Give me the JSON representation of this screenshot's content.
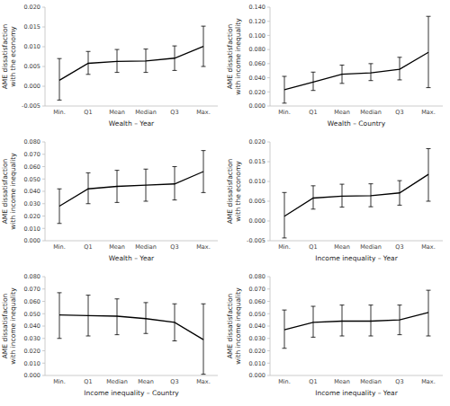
{
  "chart_data": [
    {
      "type": "line",
      "color": "#000000",
      "ylabel": "AME dissatisfaction with the economy",
      "xlabel": "Wealth – Year",
      "categories": [
        "Min.",
        "Q1",
        "Mean",
        "Median",
        "Q3",
        "Max."
      ],
      "values": [
        0.0015,
        0.0058,
        0.0063,
        0.0064,
        0.0071,
        0.0101
      ],
      "lower": [
        -0.0035,
        0.003,
        0.0035,
        0.0035,
        0.004,
        0.005
      ],
      "upper": [
        0.007,
        0.0088,
        0.0093,
        0.0094,
        0.0102,
        0.0152
      ],
      "ylim": [
        -0.005,
        0.02
      ],
      "yticks": [
        -0.005,
        {
          "value": 0,
          "label": "0.000"
        },
        0.005,
        {
          "value": 0.01,
          "label": "0.010"
        },
        0.015,
        {
          "value": 0.02,
          "label": "0.020"
        }
      ]
    },
    {
      "type": "line",
      "color": "#000000",
      "ylabel": "AME dissatisfaction with income inequality",
      "xlabel": "Wealth – Country",
      "categories": [
        "Min.",
        "Q1",
        "Mean",
        "Median",
        "Q3",
        "Max."
      ],
      "values": [
        0.023,
        0.034,
        0.045,
        0.047,
        0.052,
        0.076
      ],
      "lower": [
        0.004,
        0.022,
        0.032,
        0.036,
        0.037,
        0.026
      ],
      "upper": [
        0.042,
        0.048,
        0.058,
        0.06,
        0.069,
        0.127
      ],
      "ylim": [
        0,
        0.14
      ],
      "yticks": [
        {
          "value": 0,
          "label": "0.000"
        },
        {
          "value": 0.02,
          "label": "0.020"
        },
        {
          "value": 0.04,
          "label": "0.040"
        },
        {
          "value": 0.06,
          "label": "0.060"
        },
        {
          "value": 0.08,
          "label": "0.080"
        },
        {
          "value": 0.1,
          "label": "0.100"
        },
        {
          "value": 0.12,
          "label": "0.120"
        },
        {
          "value": 0.14,
          "label": "0.140"
        }
      ]
    },
    {
      "type": "line",
      "color": "#000000",
      "ylabel": "AME dissatisfaction with income inequality",
      "xlabel": "Wealth – Year",
      "categories": [
        "Min.",
        "Q1",
        "Mean",
        "Median",
        "Q3",
        "Max."
      ],
      "values": [
        0.028,
        0.042,
        0.044,
        0.045,
        0.046,
        0.056
      ],
      "lower": [
        0.014,
        0.03,
        0.031,
        0.032,
        0.033,
        0.039
      ],
      "upper": [
        0.042,
        0.055,
        0.057,
        0.058,
        0.06,
        0.073
      ],
      "ylim": [
        0,
        0.08
      ],
      "yticks": [
        {
          "value": 0,
          "label": "0.000"
        },
        {
          "value": 0.01,
          "label": "0.010"
        },
        {
          "value": 0.02,
          "label": "0.020"
        },
        {
          "value": 0.03,
          "label": "0.030"
        },
        {
          "value": 0.04,
          "label": "0.040"
        },
        {
          "value": 0.05,
          "label": "0.050"
        },
        {
          "value": 0.06,
          "label": "0.060"
        },
        {
          "value": 0.07,
          "label": "0.070"
        },
        {
          "value": 0.08,
          "label": "0.080"
        }
      ]
    },
    {
      "type": "line",
      "color": "#000000",
      "ylabel": "AME dissatisfaction with the economy",
      "xlabel": "Income inequality – Year",
      "categories": [
        "Min.",
        "Q1",
        "Mean",
        "Median",
        "Q3",
        "Max."
      ],
      "values": [
        0.0012,
        0.0058,
        0.0063,
        0.0064,
        0.0071,
        0.0118
      ],
      "lower": [
        -0.0043,
        0.003,
        0.0035,
        0.0036,
        0.004,
        0.005
      ],
      "upper": [
        0.0072,
        0.0089,
        0.0093,
        0.0094,
        0.0102,
        0.0183
      ],
      "ylim": [
        -0.005,
        0.02
      ],
      "yticks": [
        -0.005,
        {
          "value": 0,
          "label": "0.000"
        },
        0.005,
        {
          "value": 0.01,
          "label": "0.010"
        },
        0.015,
        {
          "value": 0.02,
          "label": "0.020"
        }
      ]
    },
    {
      "type": "line",
      "color": "#000000",
      "ylabel": "AME dissatisfaction with income inequality",
      "xlabel": "Income inequality – Country",
      "categories": [
        "Min.",
        "Q1",
        "Median",
        "Mean",
        "Q3",
        "Max."
      ],
      "values": [
        0.049,
        0.0485,
        0.048,
        0.046,
        0.043,
        0.029
      ],
      "lower": [
        0.03,
        0.032,
        0.033,
        0.034,
        0.028,
        0.001
      ],
      "upper": [
        0.067,
        0.065,
        0.062,
        0.059,
        0.058,
        0.058
      ],
      "ylim": [
        0,
        0.08
      ],
      "yticks": [
        {
          "value": 0,
          "label": "0.000"
        },
        {
          "value": 0.01,
          "label": "0.010"
        },
        {
          "value": 0.02,
          "label": "0.020"
        },
        {
          "value": 0.03,
          "label": "0.030"
        },
        {
          "value": 0.04,
          "label": "0.040"
        },
        {
          "value": 0.05,
          "label": "0.050"
        },
        {
          "value": 0.06,
          "label": "0.060"
        },
        {
          "value": 0.07,
          "label": "0.070"
        },
        {
          "value": 0.08,
          "label": "0.080"
        }
      ]
    },
    {
      "type": "line",
      "color": "#000000",
      "ylabel": "AME dissatisfaction with income inequality",
      "xlabel": "Income inequality – Year",
      "categories": [
        "Min.",
        "Q1",
        "Mean",
        "Median",
        "Q3",
        "Max."
      ],
      "values": [
        0.037,
        0.043,
        0.044,
        0.044,
        0.045,
        0.051
      ],
      "lower": [
        0.022,
        0.031,
        0.032,
        0.032,
        0.033,
        0.032
      ],
      "upper": [
        0.053,
        0.056,
        0.057,
        0.057,
        0.057,
        0.069
      ],
      "ylim": [
        0,
        0.08
      ],
      "yticks": [
        {
          "value": 0,
          "label": "0.000"
        },
        {
          "value": 0.01,
          "label": "0.010"
        },
        {
          "value": 0.02,
          "label": "0.020"
        },
        {
          "value": 0.03,
          "label": "0.030"
        },
        {
          "value": 0.04,
          "label": "0.040"
        },
        {
          "value": 0.05,
          "label": "0.050"
        },
        {
          "value": 0.06,
          "label": "0.060"
        },
        {
          "value": 0.07,
          "label": "0.070"
        },
        {
          "value": 0.08,
          "label": "0.080"
        }
      ]
    }
  ]
}
